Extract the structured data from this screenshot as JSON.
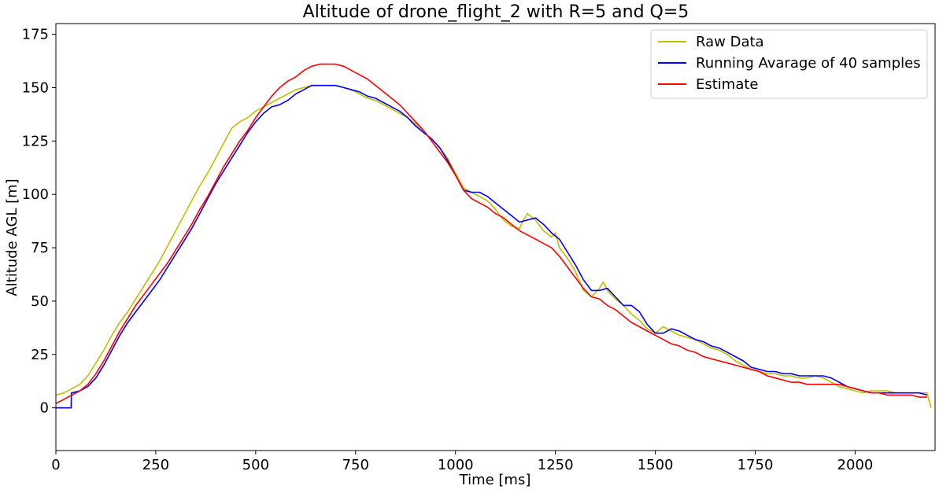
{
  "chart_data": {
    "type": "line",
    "title": "Altitude of drone_flight_2 with R=5 and Q=5",
    "xlabel": "Time [ms]",
    "ylabel": "Altitude AGL [m]",
    "xlim": [
      0,
      2200
    ],
    "ylim": [
      -20,
      180
    ],
    "xticks": [
      0,
      250,
      500,
      750,
      1000,
      1250,
      1500,
      1750,
      2000
    ],
    "yticks": [
      0,
      25,
      50,
      75,
      100,
      125,
      150,
      175
    ],
    "legend_position": "top-right",
    "grid": false,
    "series": [
      {
        "name": "Raw Data",
        "color": "#bfbf00",
        "x": [
          0,
          20,
          40,
          60,
          80,
          100,
          120,
          140,
          160,
          180,
          200,
          220,
          240,
          260,
          280,
          300,
          320,
          340,
          360,
          380,
          400,
          420,
          440,
          460,
          480,
          500,
          520,
          540,
          560,
          580,
          600,
          620,
          640,
          660,
          680,
          700,
          720,
          740,
          760,
          780,
          800,
          820,
          840,
          860,
          880,
          900,
          920,
          940,
          960,
          980,
          1000,
          1020,
          1040,
          1060,
          1080,
          1100,
          1120,
          1140,
          1160,
          1170,
          1180,
          1200,
          1220,
          1240,
          1250,
          1260,
          1280,
          1300,
          1320,
          1340,
          1360,
          1370,
          1380,
          1400,
          1420,
          1440,
          1460,
          1480,
          1500,
          1520,
          1540,
          1560,
          1580,
          1600,
          1620,
          1640,
          1660,
          1680,
          1700,
          1720,
          1740,
          1760,
          1780,
          1800,
          1820,
          1840,
          1860,
          1880,
          1900,
          1920,
          1940,
          1960,
          1980,
          2000,
          2020,
          2040,
          2060,
          2080,
          2100,
          2120,
          2140,
          2160,
          2180,
          2190
        ],
        "y": [
          6,
          7,
          9,
          11,
          15,
          21,
          27,
          34,
          40,
          45,
          51,
          57,
          63,
          69,
          76,
          83,
          90,
          97,
          104,
          110,
          117,
          124,
          131,
          134,
          136,
          139,
          141,
          143,
          145,
          147,
          149,
          150,
          151,
          151,
          151,
          151,
          150,
          149,
          147,
          145,
          144,
          142,
          140,
          138,
          136,
          133,
          129,
          126,
          122,
          117,
          110,
          103,
          101,
          99,
          97,
          93,
          88,
          85,
          84,
          88,
          91,
          88,
          83,
          80,
          82,
          75,
          70,
          64,
          55,
          52,
          56,
          59,
          55,
          51,
          48,
          44,
          41,
          37,
          35,
          38,
          36,
          34,
          33,
          32,
          30,
          28,
          27,
          25,
          22,
          20,
          18,
          17,
          16,
          16,
          15,
          15,
          14,
          14,
          15,
          14,
          12,
          10,
          9,
          8,
          7,
          8,
          8,
          8,
          7,
          7,
          7,
          7,
          7,
          0
        ]
      },
      {
        "name": "Running Avarage of 40 samples",
        "color": "#0000ff",
        "x": [
          0,
          38,
          39,
          40,
          60,
          80,
          100,
          120,
          140,
          160,
          180,
          200,
          220,
          240,
          260,
          280,
          300,
          320,
          340,
          360,
          380,
          400,
          420,
          440,
          460,
          480,
          500,
          520,
          540,
          560,
          580,
          600,
          620,
          640,
          660,
          680,
          700,
          720,
          740,
          760,
          780,
          800,
          820,
          840,
          860,
          880,
          900,
          920,
          940,
          960,
          980,
          1000,
          1020,
          1040,
          1060,
          1080,
          1100,
          1120,
          1140,
          1160,
          1180,
          1200,
          1220,
          1240,
          1260,
          1280,
          1300,
          1320,
          1340,
          1360,
          1380,
          1400,
          1420,
          1440,
          1460,
          1480,
          1500,
          1520,
          1540,
          1560,
          1580,
          1600,
          1620,
          1640,
          1660,
          1680,
          1700,
          1720,
          1740,
          1760,
          1780,
          1800,
          1820,
          1840,
          1860,
          1880,
          1900,
          1920,
          1940,
          1960,
          1980,
          2000,
          2020,
          2040,
          2060,
          2080,
          2100,
          2120,
          2140,
          2160,
          2180
        ],
        "y": [
          0,
          0,
          7,
          7,
          8,
          10,
          14,
          20,
          27,
          34,
          40,
          45,
          50,
          55,
          60,
          66,
          72,
          78,
          84,
          91,
          98,
          105,
          111,
          117,
          123,
          129,
          134,
          138,
          141,
          142,
          144,
          147,
          149,
          151,
          151,
          151,
          151,
          150,
          149,
          148,
          146,
          145,
          143,
          141,
          139,
          136,
          132,
          129,
          126,
          122,
          116,
          109,
          102,
          101,
          101,
          99,
          96,
          93,
          90,
          87,
          88,
          89,
          86,
          82,
          79,
          73,
          67,
          60,
          55,
          55,
          56,
          52,
          48,
          48,
          45,
          39,
          35,
          35,
          37,
          36,
          34,
          32,
          31,
          29,
          28,
          26,
          24,
          22,
          19,
          18,
          17,
          17,
          16,
          16,
          15,
          15,
          15,
          15,
          14,
          12,
          10,
          9,
          8,
          7,
          7,
          7,
          7,
          7,
          7,
          7,
          6
        ]
      },
      {
        "name": "Estimate",
        "color": "#ff0000",
        "x": [
          0,
          20,
          40,
          60,
          80,
          100,
          120,
          140,
          160,
          180,
          200,
          220,
          240,
          260,
          280,
          300,
          320,
          340,
          360,
          380,
          400,
          420,
          440,
          460,
          480,
          500,
          520,
          540,
          560,
          580,
          600,
          620,
          640,
          660,
          680,
          700,
          720,
          740,
          760,
          780,
          800,
          820,
          840,
          860,
          880,
          900,
          920,
          940,
          960,
          980,
          1000,
          1020,
          1040,
          1060,
          1080,
          1100,
          1120,
          1140,
          1160,
          1180,
          1200,
          1220,
          1240,
          1260,
          1280,
          1300,
          1320,
          1340,
          1360,
          1380,
          1400,
          1420,
          1440,
          1460,
          1480,
          1500,
          1520,
          1540,
          1560,
          1580,
          1600,
          1620,
          1640,
          1660,
          1680,
          1700,
          1720,
          1740,
          1760,
          1780,
          1800,
          1820,
          1840,
          1860,
          1880,
          1900,
          1920,
          1940,
          1960,
          1980,
          2000,
          2020,
          2040,
          2060,
          2080,
          2100,
          2120,
          2140,
          2160,
          2180
        ],
        "y": [
          2,
          4,
          6,
          8,
          11,
          16,
          22,
          29,
          36,
          42,
          48,
          53,
          58,
          63,
          68,
          74,
          80,
          86,
          93,
          99,
          106,
          113,
          119,
          125,
          130,
          136,
          141,
          146,
          150,
          153,
          155,
          158,
          160,
          161,
          161,
          161,
          160,
          158,
          156,
          154,
          151,
          148,
          145,
          142,
          138,
          134,
          130,
          125,
          120,
          115,
          109,
          102,
          98,
          96,
          94,
          91,
          89,
          86,
          83,
          81,
          79,
          77,
          75,
          71,
          66,
          61,
          56,
          52,
          51,
          48,
          46,
          43,
          40,
          38,
          36,
          34,
          32,
          30,
          29,
          27,
          26,
          24,
          23,
          22,
          21,
          20,
          19,
          18,
          17,
          15,
          14,
          13,
          12,
          12,
          11,
          11,
          11,
          11,
          11,
          10,
          9,
          8,
          7,
          7,
          6,
          6,
          6,
          6,
          5,
          5
        ]
      }
    ]
  }
}
